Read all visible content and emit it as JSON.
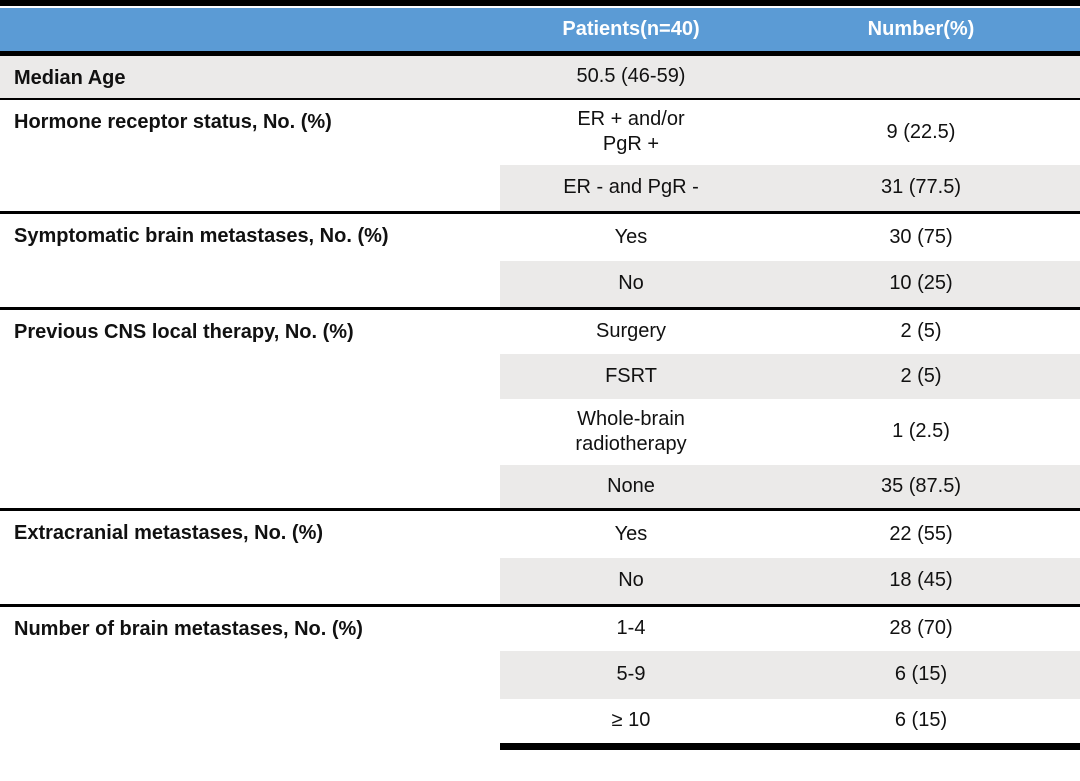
{
  "colors": {
    "header_bg": "#5B9BD5",
    "header_text": "#FFFFFF",
    "row_shade": "#EBEAE9",
    "rule": "#000000"
  },
  "table": {
    "header": {
      "col1": "",
      "col2": "Patients(n=40)",
      "col3": "Number(%)"
    },
    "groups": [
      {
        "label": "Median Age",
        "rows": [
          {
            "value": "50.5 (46-59)",
            "number": ""
          }
        ]
      },
      {
        "label": "Hormone receptor status, No. (%)",
        "rows": [
          {
            "value": "ER + and/or\nPgR +",
            "number": "9 (22.5)"
          },
          {
            "value": "ER - and PgR -",
            "number": "31 (77.5)"
          }
        ]
      },
      {
        "label": "Symptomatic brain metastases, No. (%)",
        "rows": [
          {
            "value": "Yes",
            "number": "30 (75)"
          },
          {
            "value": "No",
            "number": "10 (25)"
          }
        ]
      },
      {
        "label": "Previous CNS local therapy, No. (%)",
        "rows": [
          {
            "value": "Surgery",
            "number": "2 (5)"
          },
          {
            "value": "FSRT",
            "number": "2 (5)"
          },
          {
            "value": "Whole-brain\nradiotherapy",
            "number": "1 (2.5)"
          },
          {
            "value": "None",
            "number": "35 (87.5)"
          }
        ]
      },
      {
        "label": "Extracranial metastases, No. (%)",
        "rows": [
          {
            "value": "Yes",
            "number": "22 (55)"
          },
          {
            "value": "No",
            "number": "18 (45)"
          }
        ]
      },
      {
        "label": "Number of brain metastases, No. (%)",
        "rows": [
          {
            "value": "1-4",
            "number": "28 (70)"
          },
          {
            "value": "5-9",
            "number": "6 (15)"
          },
          {
            "value": "≥ 10",
            "number": "6 (15)"
          }
        ]
      }
    ]
  }
}
